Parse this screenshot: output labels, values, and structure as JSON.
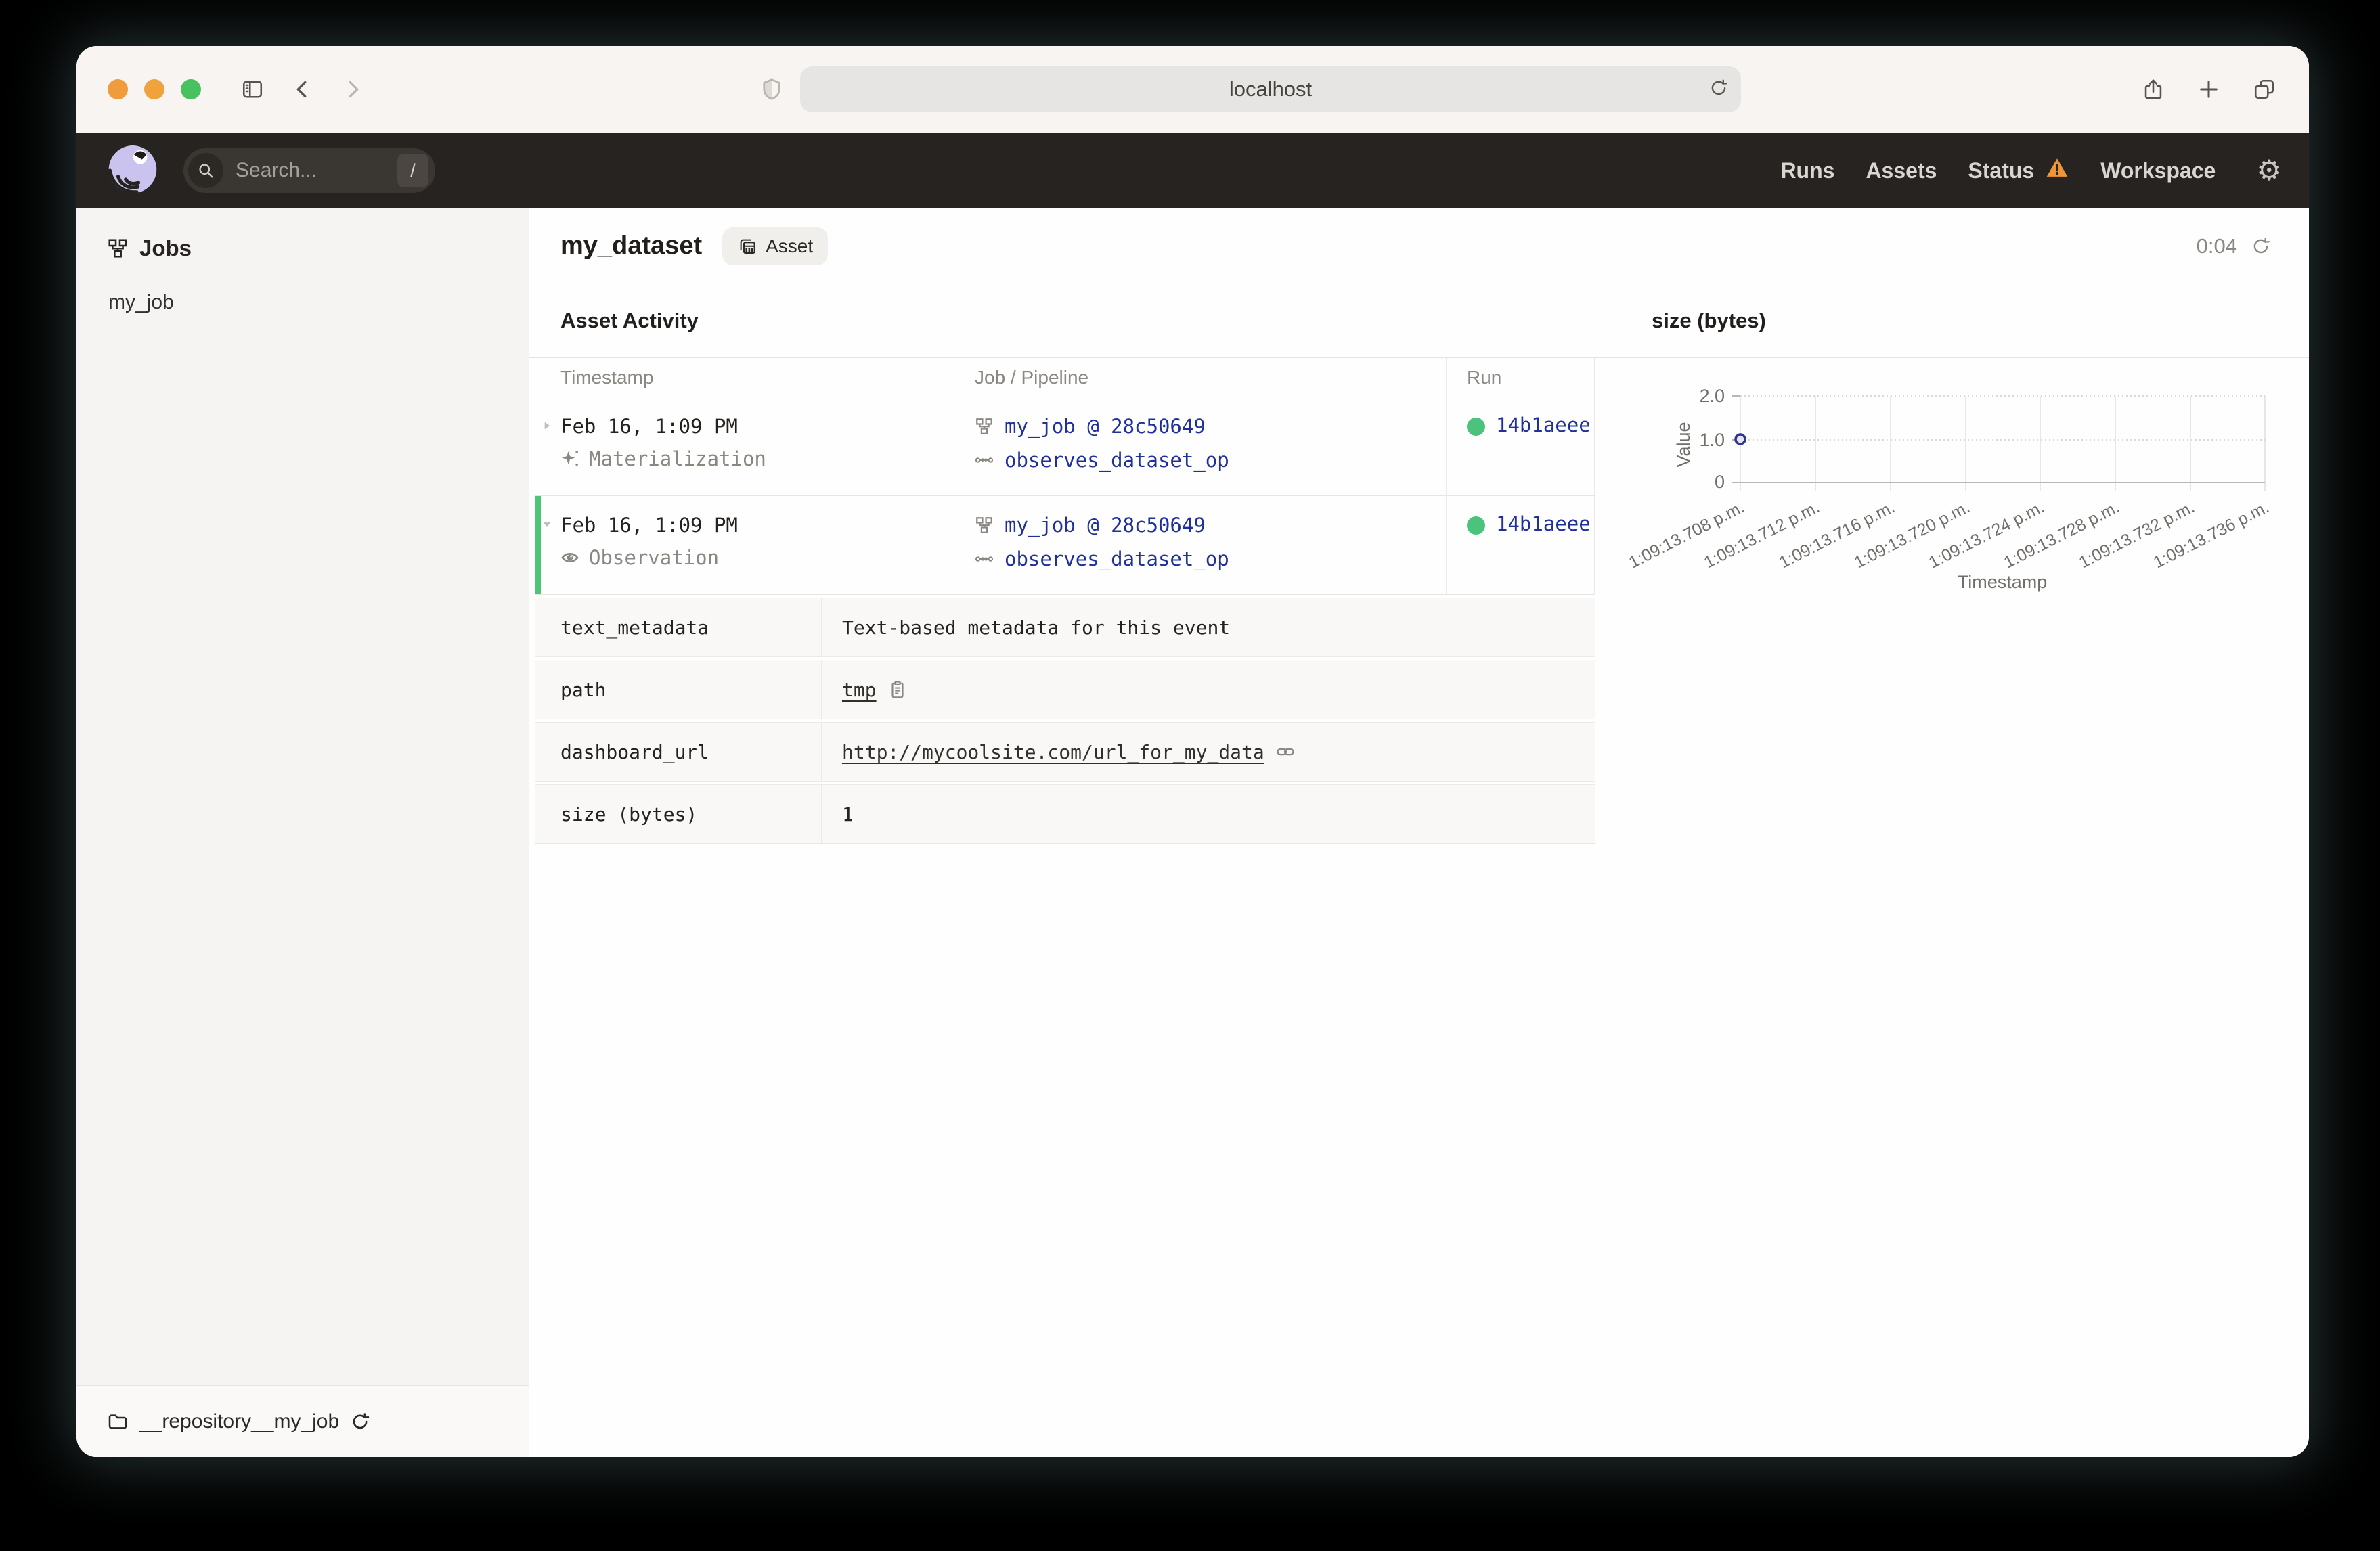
{
  "browser": {
    "url": "localhost"
  },
  "app_header": {
    "search_placeholder": "Search...",
    "search_shortcut": "/",
    "nav": [
      "Runs",
      "Assets",
      "Status",
      "Workspace"
    ]
  },
  "sidebar": {
    "title": "Jobs",
    "items": [
      "my_job"
    ],
    "footer": "__repository__my_job"
  },
  "page": {
    "title": "my_dataset",
    "tag": "Asset",
    "timer": "0:04"
  },
  "activity": {
    "heading": "Asset Activity",
    "columns": [
      "Timestamp",
      "Job / Pipeline",
      "Run"
    ],
    "rows": [
      {
        "timestamp": "Feb 16, 1:09 PM",
        "event_type": "Materialization",
        "job": "my_job @ 28c50649",
        "op": "observes_dataset_op",
        "run_id": "14b1aeee",
        "expanded": false
      },
      {
        "timestamp": "Feb 16, 1:09 PM",
        "event_type": "Observation",
        "job": "my_job @ 28c50649",
        "op": "observes_dataset_op",
        "run_id": "14b1aeee",
        "expanded": true
      }
    ],
    "metadata": [
      {
        "key": "text_metadata",
        "value": "Text-based metadata for this event",
        "type": "text"
      },
      {
        "key": "path",
        "value": "tmp",
        "type": "path"
      },
      {
        "key": "dashboard_url",
        "value": "http://mycoolsite.com/url_for_my_data",
        "type": "url"
      },
      {
        "key": "size (bytes)",
        "value": "1",
        "type": "text"
      }
    ]
  },
  "chart_data": {
    "type": "scatter",
    "title": "size (bytes)",
    "xlabel": "Timestamp",
    "ylabel": "Value",
    "ylim": [
      0,
      2.0
    ],
    "y_ticks": [
      "2.0",
      "1.0",
      "0"
    ],
    "x_ticks": [
      "1:09:13.708 p.m.",
      "1:09:13.712 p.m.",
      "1:09:13.716 p.m.",
      "1:09:13.720 p.m.",
      "1:09:13.724 p.m.",
      "1:09:13.728 p.m.",
      "1:09:13.732 p.m.",
      "1:09:13.736 p.m."
    ],
    "points": [
      {
        "x": "1:09:13.708 p.m.",
        "y": 1
      }
    ],
    "grid": true,
    "legend": false
  },
  "colors": {
    "accent_green": "#4CC37C",
    "link_blue": "#1F2F9C",
    "warning_orange": "#F09537",
    "logo_lavender": "#C9C3EE",
    "header_dark": "#272320"
  }
}
